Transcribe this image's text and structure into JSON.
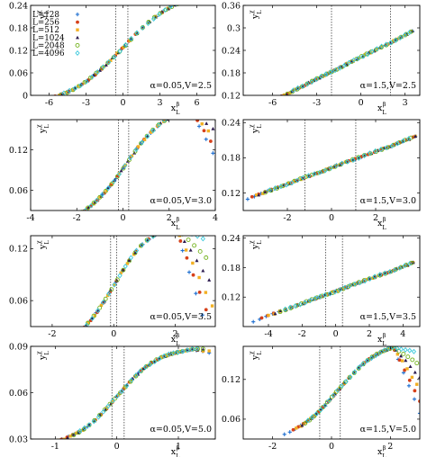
{
  "figure": {
    "legend": {
      "placement": "top-left of first panel",
      "entries": [
        {
          "label": "L=128",
          "color": "#1f6fd0",
          "marker": "plus"
        },
        {
          "label": "L=256",
          "color": "#d6401a",
          "marker": "circle"
        },
        {
          "label": "L=512",
          "color": "#f2b024",
          "marker": "square"
        },
        {
          "label": "L=1024",
          "color": "#2b1a4e",
          "marker": "triangle"
        },
        {
          "label": "L=2048",
          "color": "#74b31f",
          "marker": "circle-open"
        },
        {
          "label": "L=4096",
          "color": "#3cc9dc",
          "marker": "diamond"
        }
      ]
    },
    "x_axis_symbol": "x",
    "x_axis_sup": "β",
    "x_axis_sub": "L",
    "y_axis_symbol": "y",
    "y_axis_sup": "χ",
    "y_axis_sub": "L"
  },
  "chart_data": [
    {
      "type": "scatter",
      "annotation": "α=0.05,V=2.5",
      "xlim": [
        -7.5,
        7.5
      ],
      "xticks": [
        -6,
        -3,
        0,
        3,
        6
      ],
      "ylim": [
        0,
        0.24
      ],
      "yticks": [
        0,
        0.06,
        0.12,
        0.18,
        0.24
      ],
      "vlines": [
        -0.6,
        0.4
      ],
      "curve": {
        "family": "tanh",
        "center": 0,
        "width": 4.6,
        "low": -0.03,
        "high": 0.285,
        "peak_x": 6.3,
        "droop": 0.004
      },
      "series": [
        {
          "name": "L=128",
          "x_range": [
            -6.8,
            7.2
          ]
        },
        {
          "name": "L=256",
          "x_range": [
            -6.6,
            7.0
          ]
        },
        {
          "name": "L=512",
          "x_range": [
            -6.2,
            6.8
          ]
        },
        {
          "name": "L=1024",
          "x_range": [
            -5.4,
            7.2
          ]
        },
        {
          "name": "L=2048",
          "x_range": [
            -5.0,
            6.8
          ]
        },
        {
          "name": "L=4096",
          "x_range": [
            -4.8,
            6.6
          ]
        }
      ],
      "grid": false
    },
    {
      "type": "scatter",
      "annotation": "α=1.5,V=2.5",
      "xlim": [
        -8,
        4
      ],
      "xticks": [
        -6,
        -3,
        0,
        3
      ],
      "ylim": [
        0.12,
        0.36
      ],
      "yticks": [
        0.12,
        0.18,
        0.24,
        0.3,
        0.36
      ],
      "vlines": [
        -2,
        2
      ],
      "curve": {
        "family": "linear",
        "slope": 0.0195,
        "intercept": 0.222
      },
      "series": [
        {
          "name": "L=128",
          "x_range": [
            -6.9,
            3.5
          ]
        },
        {
          "name": "L=256",
          "x_range": [
            -6.6,
            3.4
          ]
        },
        {
          "name": "L=512",
          "x_range": [
            -6.4,
            3.4
          ]
        },
        {
          "name": "L=1024",
          "x_range": [
            -5.8,
            3.5
          ]
        },
        {
          "name": "L=2048",
          "x_range": [
            -5.0,
            3.4
          ]
        },
        {
          "name": "L=4096",
          "x_range": [
            -4.6,
            3.3
          ]
        }
      ],
      "grid": false
    },
    {
      "type": "scatter",
      "annotation": "α=0.05,V=3.0",
      "xlim": [
        -4,
        4
      ],
      "xticks": [
        -4,
        -2,
        0,
        2,
        4
      ],
      "ylim": [
        0.03,
        0.165
      ],
      "yticks": [
        0.06,
        0.12
      ],
      "vlines": [
        -0.2,
        0.25
      ],
      "curve": {
        "family": "tanh",
        "center": 0.1,
        "width": 1.9,
        "low": 0.005,
        "high": 0.19,
        "peak_x": 2.9,
        "droop": 0.012
      },
      "series": [
        {
          "name": "L=128",
          "x_range": [
            -3.6,
            3.9
          ]
        },
        {
          "name": "L=256",
          "x_range": [
            -3.4,
            3.8
          ]
        },
        {
          "name": "L=512",
          "x_range": [
            -3.2,
            3.7
          ]
        },
        {
          "name": "L=1024",
          "x_range": [
            -3.2,
            3.9
          ]
        },
        {
          "name": "L=2048",
          "x_range": [
            -2.8,
            3.6
          ]
        },
        {
          "name": "L=4096",
          "x_range": [
            -2.6,
            3.5
          ]
        }
      ],
      "grid": false
    },
    {
      "type": "scatter",
      "annotation": "α=1.5,V=3.0",
      "xlim": [
        -4,
        4
      ],
      "xticks": [
        -2,
        0,
        2
      ],
      "ylim": [
        0.09,
        0.245
      ],
      "yticks": [
        0.12,
        0.18,
        0.24
      ],
      "vlines": [
        -1.2,
        1.1
      ],
      "curve": {
        "family": "linear",
        "slope": 0.0139,
        "intercept": 0.163
      },
      "series": [
        {
          "name": "L=128",
          "x_range": [
            -3.8,
            3.8
          ]
        },
        {
          "name": "L=256",
          "x_range": [
            -3.6,
            3.7
          ]
        },
        {
          "name": "L=512",
          "x_range": [
            -3.4,
            3.8
          ]
        },
        {
          "name": "L=1024",
          "x_range": [
            -3.3,
            3.8
          ]
        },
        {
          "name": "L=2048",
          "x_range": [
            -3.0,
            3.6
          ]
        },
        {
          "name": "L=4096",
          "x_range": [
            -2.8,
            3.5
          ]
        }
      ],
      "grid": false
    },
    {
      "type": "scatter",
      "annotation": "α=0.05,V=3.5",
      "xlim": [
        -2.7,
        3.3
      ],
      "xticks": [
        -2,
        0,
        2
      ],
      "ylim": [
        0.03,
        0.135
      ],
      "yticks": [
        0.06,
        0.12
      ],
      "vlines": [
        -0.1,
        0.1
      ],
      "curve": {
        "family": "tanh",
        "center": 0.0,
        "width": 1.2,
        "low": 0.005,
        "high": 0.15,
        "peak_x": 2.0,
        "droop": 0.02
      },
      "series": [
        {
          "name": "L=128",
          "x_range": [
            -2.3,
            3.1
          ]
        },
        {
          "name": "L=256",
          "x_range": [
            -2.2,
            3.0
          ]
        },
        {
          "name": "L=512",
          "x_range": [
            -2.1,
            3.2
          ]
        },
        {
          "name": "L=1024",
          "x_range": [
            -1.9,
            3.1
          ]
        },
        {
          "name": "L=2048",
          "x_range": [
            -1.8,
            3.0
          ]
        },
        {
          "name": "L=4096",
          "x_range": [
            -1.6,
            2.9
          ]
        }
      ],
      "grid": false
    },
    {
      "type": "scatter",
      "annotation": "α=1.5,V=3.5",
      "xlim": [
        -5.5,
        5
      ],
      "xticks": [
        -4,
        -2,
        0,
        2,
        4
      ],
      "ylim": [
        0.06,
        0.245
      ],
      "yticks": [
        0.12,
        0.18,
        0.24
      ],
      "vlines": [
        -0.6,
        0.4
      ],
      "curve": {
        "family": "linear",
        "slope": 0.0125,
        "intercept": 0.132
      },
      "series": [
        {
          "name": "L=128",
          "x_range": [
            -4.9,
            4.6
          ]
        },
        {
          "name": "L=256",
          "x_range": [
            -4.4,
            4.5
          ]
        },
        {
          "name": "L=512",
          "x_range": [
            -4.0,
            4.6
          ]
        },
        {
          "name": "L=1024",
          "x_range": [
            -3.6,
            4.6
          ]
        },
        {
          "name": "L=2048",
          "x_range": [
            -3.3,
            4.5
          ]
        },
        {
          "name": "L=4096",
          "x_range": [
            -3.0,
            4.4
          ]
        }
      ],
      "grid": false
    },
    {
      "type": "scatter",
      "annotation": "α=0.05,V=5.0",
      "xlim": [
        -1.4,
        1.6
      ],
      "xticks": [
        -1,
        0,
        1
      ],
      "ylim": [
        0.03,
        0.09
      ],
      "yticks": [
        0.03,
        0.06,
        0.09
      ],
      "vlines": [
        -0.08,
        0.12
      ],
      "curve": {
        "family": "tanh",
        "center": 0.0,
        "width": 0.7,
        "low": 0.025,
        "high": 0.09,
        "peak_x": 1.2,
        "droop": 0.002
      },
      "series": [
        {
          "name": "L=128",
          "x_range": [
            -1.1,
            1.5
          ]
        },
        {
          "name": "L=256",
          "x_range": [
            -0.9,
            1.4
          ]
        },
        {
          "name": "L=512",
          "x_range": [
            -0.95,
            1.5
          ]
        },
        {
          "name": "L=1024",
          "x_range": [
            -0.8,
            1.4
          ]
        },
        {
          "name": "L=2048",
          "x_range": [
            -0.7,
            1.4
          ]
        },
        {
          "name": "L=4096",
          "x_range": [
            -0.6,
            1.3
          ]
        }
      ],
      "grid": false
    },
    {
      "type": "scatter",
      "annotation": "α=1.5,V=5.0",
      "xlim": [
        -3,
        3
      ],
      "xticks": [
        -2,
        0,
        2
      ],
      "ylim": [
        0.03,
        0.17
      ],
      "yticks": [
        0.06,
        0.12
      ],
      "vlines": [
        -0.4,
        0.3
      ],
      "curve": {
        "family": "tanh",
        "center": 0.2,
        "width": 1.5,
        "low": 0.025,
        "high": 0.18,
        "peak_x": 2.1,
        "droop": 0.02
      },
      "series": [
        {
          "name": "L=128",
          "x_range": [
            -1.6,
            3.0
          ]
        },
        {
          "name": "L=256",
          "x_range": [
            -1.3,
            3.0
          ]
        },
        {
          "name": "L=512",
          "x_range": [
            -1.2,
            2.9
          ]
        },
        {
          "name": "L=1024",
          "x_range": [
            -1.0,
            3.0
          ]
        },
        {
          "name": "L=2048",
          "x_range": [
            -0.9,
            2.9
          ]
        },
        {
          "name": "L=4096",
          "x_range": [
            -0.8,
            2.8
          ]
        }
      ],
      "grid": false
    }
  ]
}
